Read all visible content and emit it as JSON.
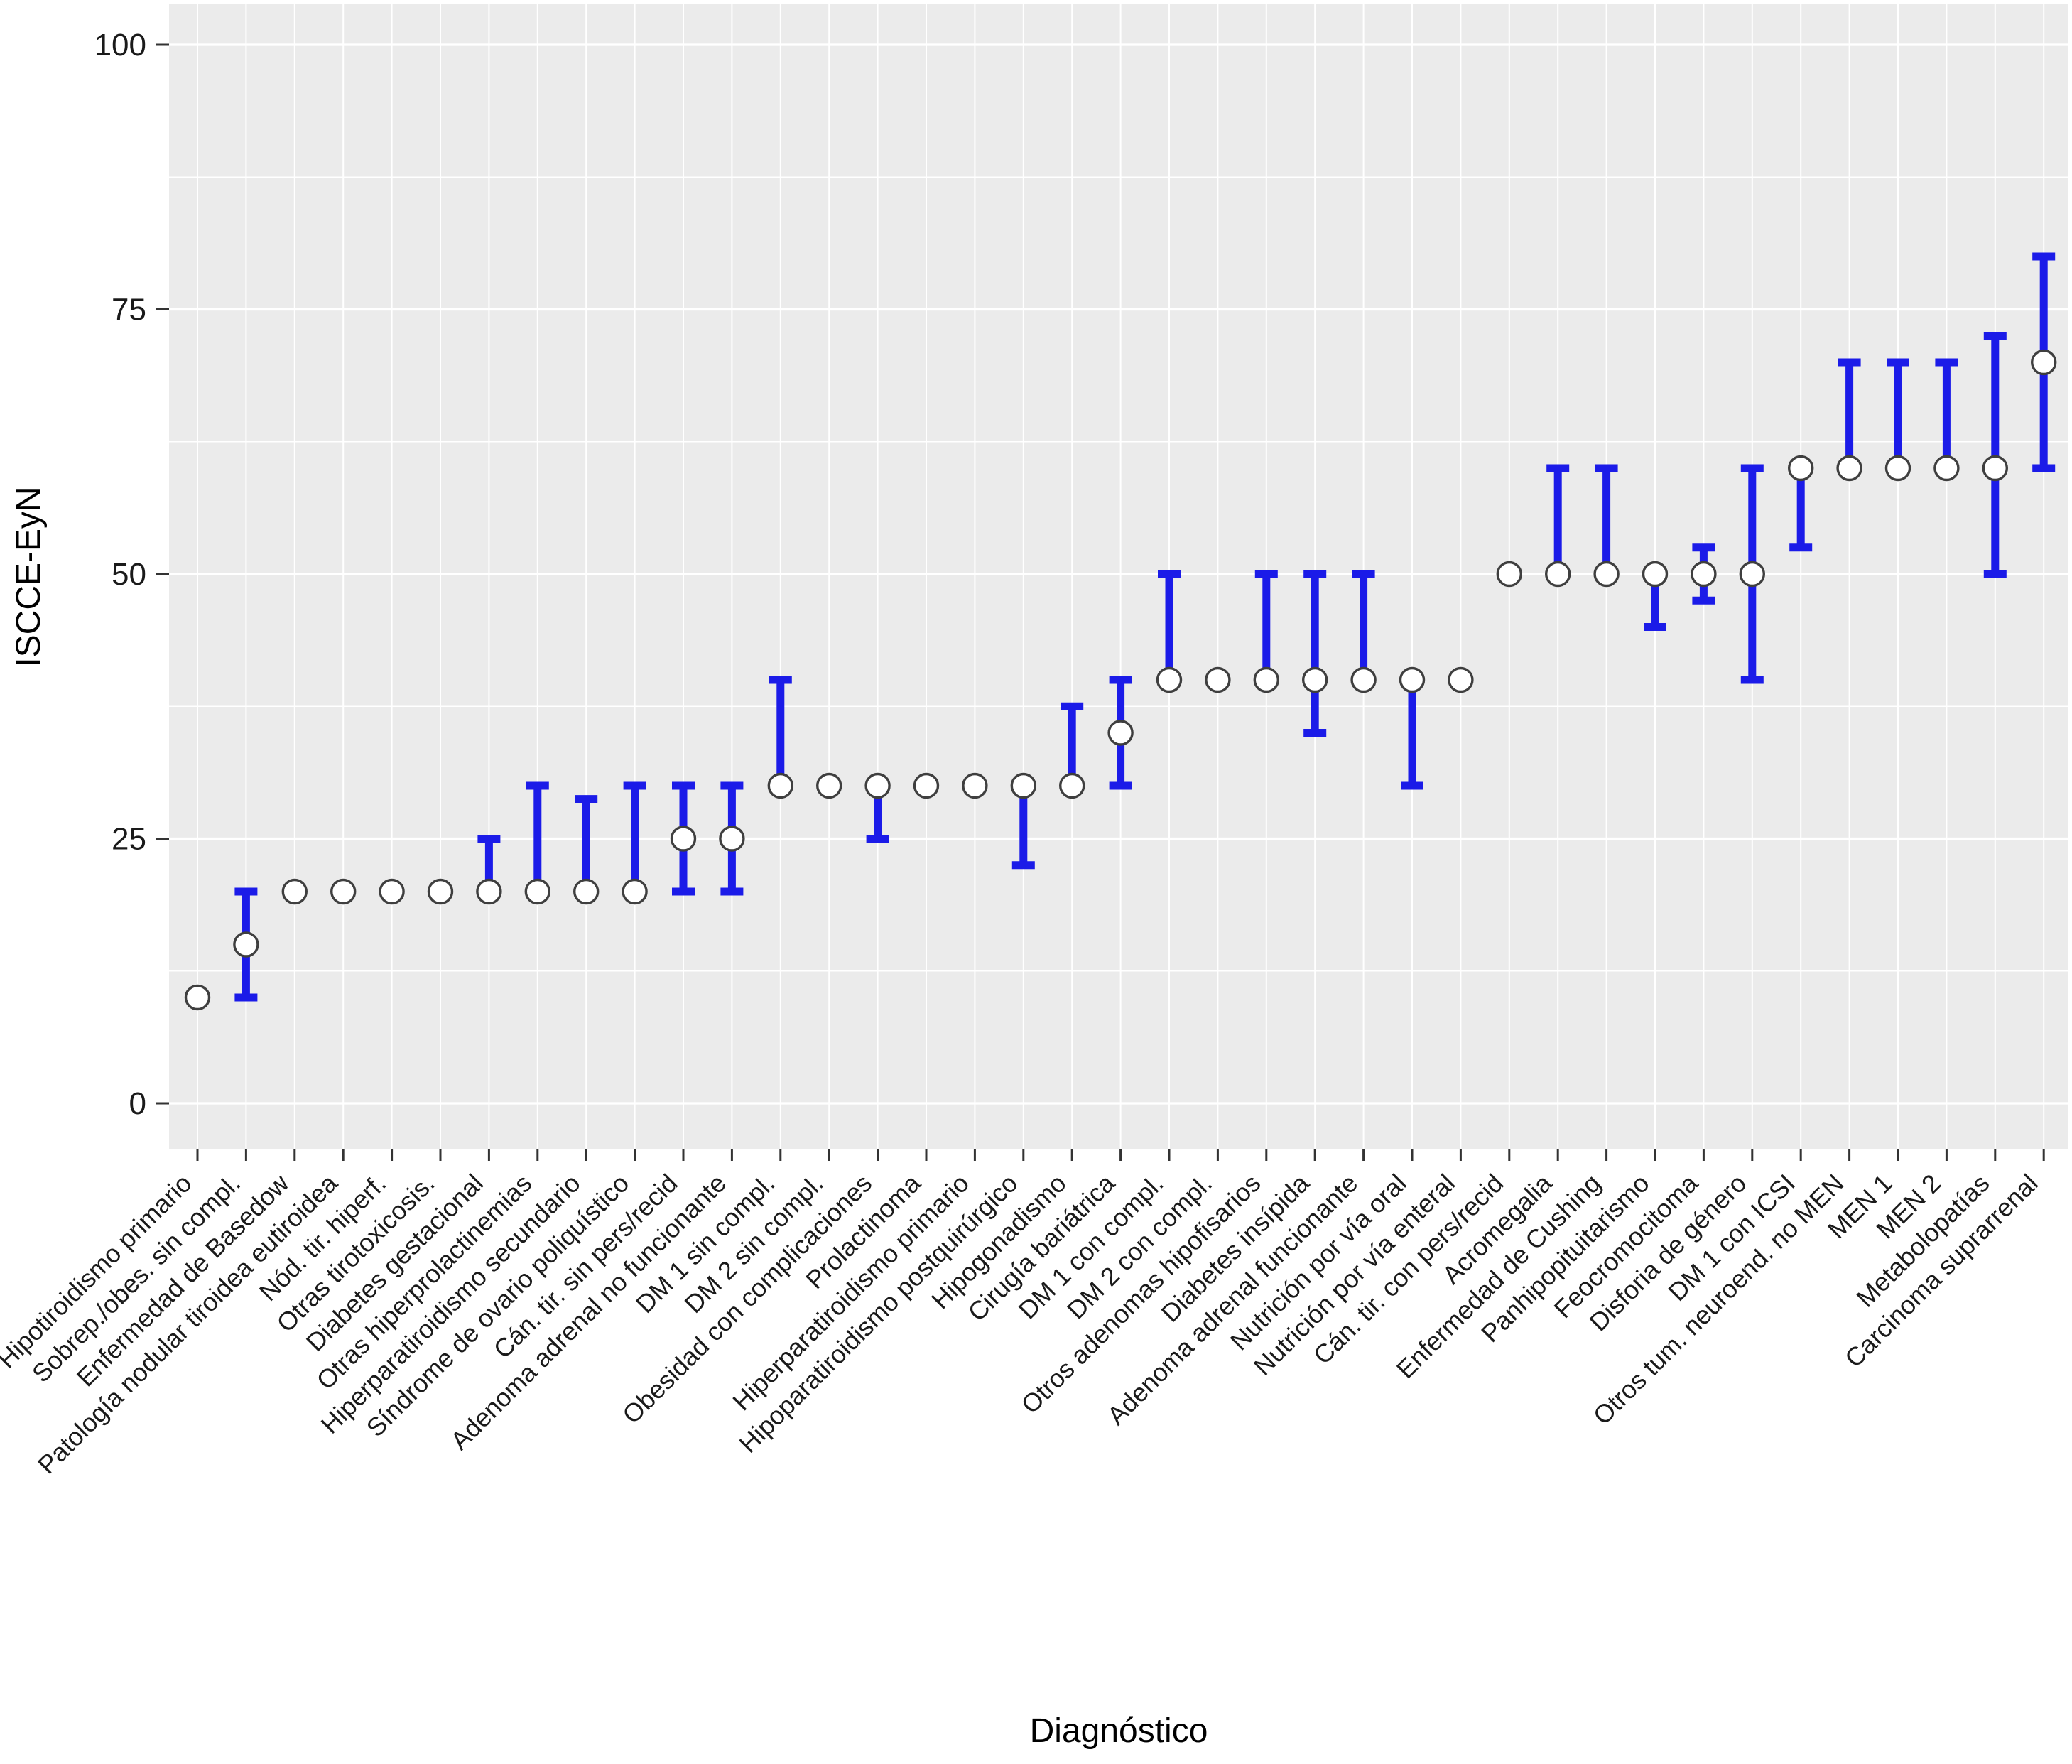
{
  "chart_data": {
    "type": "scatter",
    "title": "",
    "xlabel": "Diagnóstico",
    "ylabel": "ISCCE-EyN",
    "ylim": [
      0,
      100
    ],
    "yticks": [
      0,
      25,
      50,
      75,
      100
    ],
    "yticks_minor": [
      12.5,
      37.5,
      62.5,
      87.5
    ],
    "grid": "on",
    "legend_position": "none",
    "style": {
      "panel_bg": "#EBEBEB",
      "grid_color": "#FFFFFF",
      "errorbar_color": "#1B1BE8",
      "point_fill": "#FFFFFF",
      "point_stroke": "#3F3F3F",
      "axis_text_color": "#1A1A1A",
      "tick_color": "#333333"
    },
    "points": [
      {
        "label": "Hipotiroidismo primario",
        "median": 10,
        "low": null,
        "high": null
      },
      {
        "label": "Sobrep./obes. sin compl.",
        "median": 15,
        "low": 10,
        "high": 20
      },
      {
        "label": "Enfermedad de Basedow",
        "median": 20,
        "low": null,
        "high": null
      },
      {
        "label": "Patología nodular tiroidea eutiroidea",
        "median": 20,
        "low": null,
        "high": null
      },
      {
        "label": "Nód. tir. hiperf.",
        "median": 20,
        "low": null,
        "high": null
      },
      {
        "label": "Otras tirotoxicosis.",
        "median": 20,
        "low": null,
        "high": null
      },
      {
        "label": "Diabetes gestacional",
        "median": 20,
        "low": 20,
        "high": 25
      },
      {
        "label": "Otras hiperprolactinemias",
        "median": 20,
        "low": 20,
        "high": 30
      },
      {
        "label": "Hiperparatiroidismo secundario",
        "median": 20,
        "low": 20,
        "high": 28.75
      },
      {
        "label": "Síndrome de ovario poliquístico",
        "median": 20,
        "low": 20,
        "high": 30
      },
      {
        "label": "Cán. tir. sin pers/recid",
        "median": 25,
        "low": 20,
        "high": 30
      },
      {
        "label": "Adenoma adrenal no funcionante",
        "median": 25,
        "low": 20,
        "high": 30
      },
      {
        "label": "DM 1 sin compl.",
        "median": 30,
        "low": 30,
        "high": 40
      },
      {
        "label": "DM 2 sin compl.",
        "median": 30,
        "low": null,
        "high": null
      },
      {
        "label": "Obesidad con complicaciones",
        "median": 30,
        "low": 25,
        "high": 30
      },
      {
        "label": "Prolactinoma",
        "median": 30,
        "low": null,
        "high": null
      },
      {
        "label": "Hiperparatiroidismo primario",
        "median": 30,
        "low": null,
        "high": null
      },
      {
        "label": "Hipoparatiroidismo postquirúrgico",
        "median": 30,
        "low": 22.5,
        "high": 30
      },
      {
        "label": "Hipogonadismo",
        "median": 30,
        "low": 30,
        "high": 37.5
      },
      {
        "label": "Cirugía bariátrica",
        "median": 35,
        "low": 30,
        "high": 40
      },
      {
        "label": "DM 1 con compl.",
        "median": 40,
        "low": 40,
        "high": 50
      },
      {
        "label": "DM 2 con compl.",
        "median": 40,
        "low": null,
        "high": null
      },
      {
        "label": "Otros adenomas hipofisarios",
        "median": 40,
        "low": 40,
        "high": 50
      },
      {
        "label": "Diabetes insípida",
        "median": 40,
        "low": 35,
        "high": 50
      },
      {
        "label": "Adenoma adrenal funcionante",
        "median": 40,
        "low": 40,
        "high": 50
      },
      {
        "label": "Nutrición por vía oral",
        "median": 40,
        "low": 30,
        "high": 40
      },
      {
        "label": "Nutrición por vía enteral",
        "median": 40,
        "low": null,
        "high": null
      },
      {
        "label": "Cán. tir. con pers/recid",
        "median": 50,
        "low": null,
        "high": null
      },
      {
        "label": "Acromegalia",
        "median": 50,
        "low": 50,
        "high": 60
      },
      {
        "label": "Enfermedad de Cushing",
        "median": 50,
        "low": 50,
        "high": 60
      },
      {
        "label": "Panhipopituitarismo",
        "median": 50,
        "low": 45,
        "high": 50
      },
      {
        "label": "Feocromocitoma",
        "median": 50,
        "low": 47.5,
        "high": 52.5
      },
      {
        "label": "Disforia de género",
        "median": 50,
        "low": 40,
        "high": 60
      },
      {
        "label": "DM 1 con ICSI",
        "median": 60,
        "low": 52.5,
        "high": 60
      },
      {
        "label": "Otros tum. neuroend. no MEN",
        "median": 60,
        "low": 60,
        "high": 70
      },
      {
        "label": "MEN 1",
        "median": 60,
        "low": 60,
        "high": 70
      },
      {
        "label": "MEN 2",
        "median": 60,
        "low": 60,
        "high": 70
      },
      {
        "label": "Metabolopatías",
        "median": 60,
        "low": 50,
        "high": 72.5
      },
      {
        "label": "Carcinoma suprarrenal",
        "median": 70,
        "low": 60,
        "high": 80
      }
    ]
  }
}
